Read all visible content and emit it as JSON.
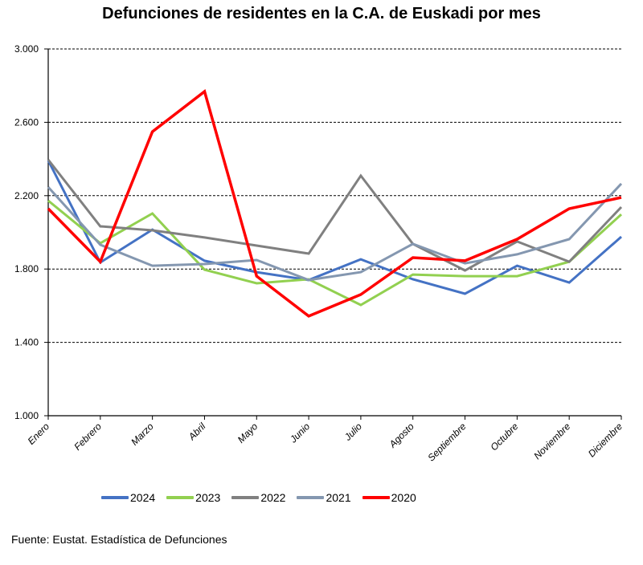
{
  "chart_data": {
    "type": "line",
    "title": "Defunciones de residentes en la C.A. de Euskadi por mes",
    "xlabel": "",
    "ylabel": "",
    "ylim": [
      1000,
      3000
    ],
    "yticks": [
      1000,
      1400,
      1800,
      2200,
      2600,
      3000
    ],
    "ytick_labels": [
      "1.000",
      "1.400",
      "1.800",
      "2.200",
      "2.600",
      "3.000"
    ],
    "grid": "horizontal-dashed",
    "legend_position": "bottom",
    "categories": [
      "Enero",
      "Febrero",
      "Marzo",
      "Abril",
      "Mayo",
      "Junio",
      "Julio",
      "Agosto",
      "Septiembre",
      "Octubre",
      "Noviembre",
      "Diciembre"
    ],
    "series": [
      {
        "name": "2024",
        "color": "#4472C4",
        "values": [
          2392,
          1836,
          2015,
          1845,
          1783,
          1740,
          1853,
          1744,
          1665,
          1818,
          1726,
          1976
        ]
      },
      {
        "name": "2023",
        "color": "#92D050",
        "values": [
          2173,
          1941,
          2103,
          1796,
          1722,
          1744,
          1604,
          1770,
          1761,
          1761,
          1840,
          2098
        ]
      },
      {
        "name": "2022",
        "color": "#808080",
        "values": [
          2396,
          2033,
          2011,
          1972,
          1928,
          1884,
          2309,
          1937,
          1792,
          1950,
          1840,
          2138
        ]
      },
      {
        "name": "2021",
        "color": "#8497B0",
        "values": [
          2247,
          1932,
          1818,
          1827,
          1849,
          1740,
          1783,
          1937,
          1831,
          1880,
          1963,
          2265
        ]
      },
      {
        "name": "2020",
        "color": "#FF0000",
        "values": [
          2129,
          1840,
          2549,
          2768,
          1761,
          1543,
          1661,
          1862,
          1845,
          1963,
          2129,
          2190
        ]
      }
    ]
  },
  "source": "Fuente: Eustat. Estadística de Defunciones"
}
